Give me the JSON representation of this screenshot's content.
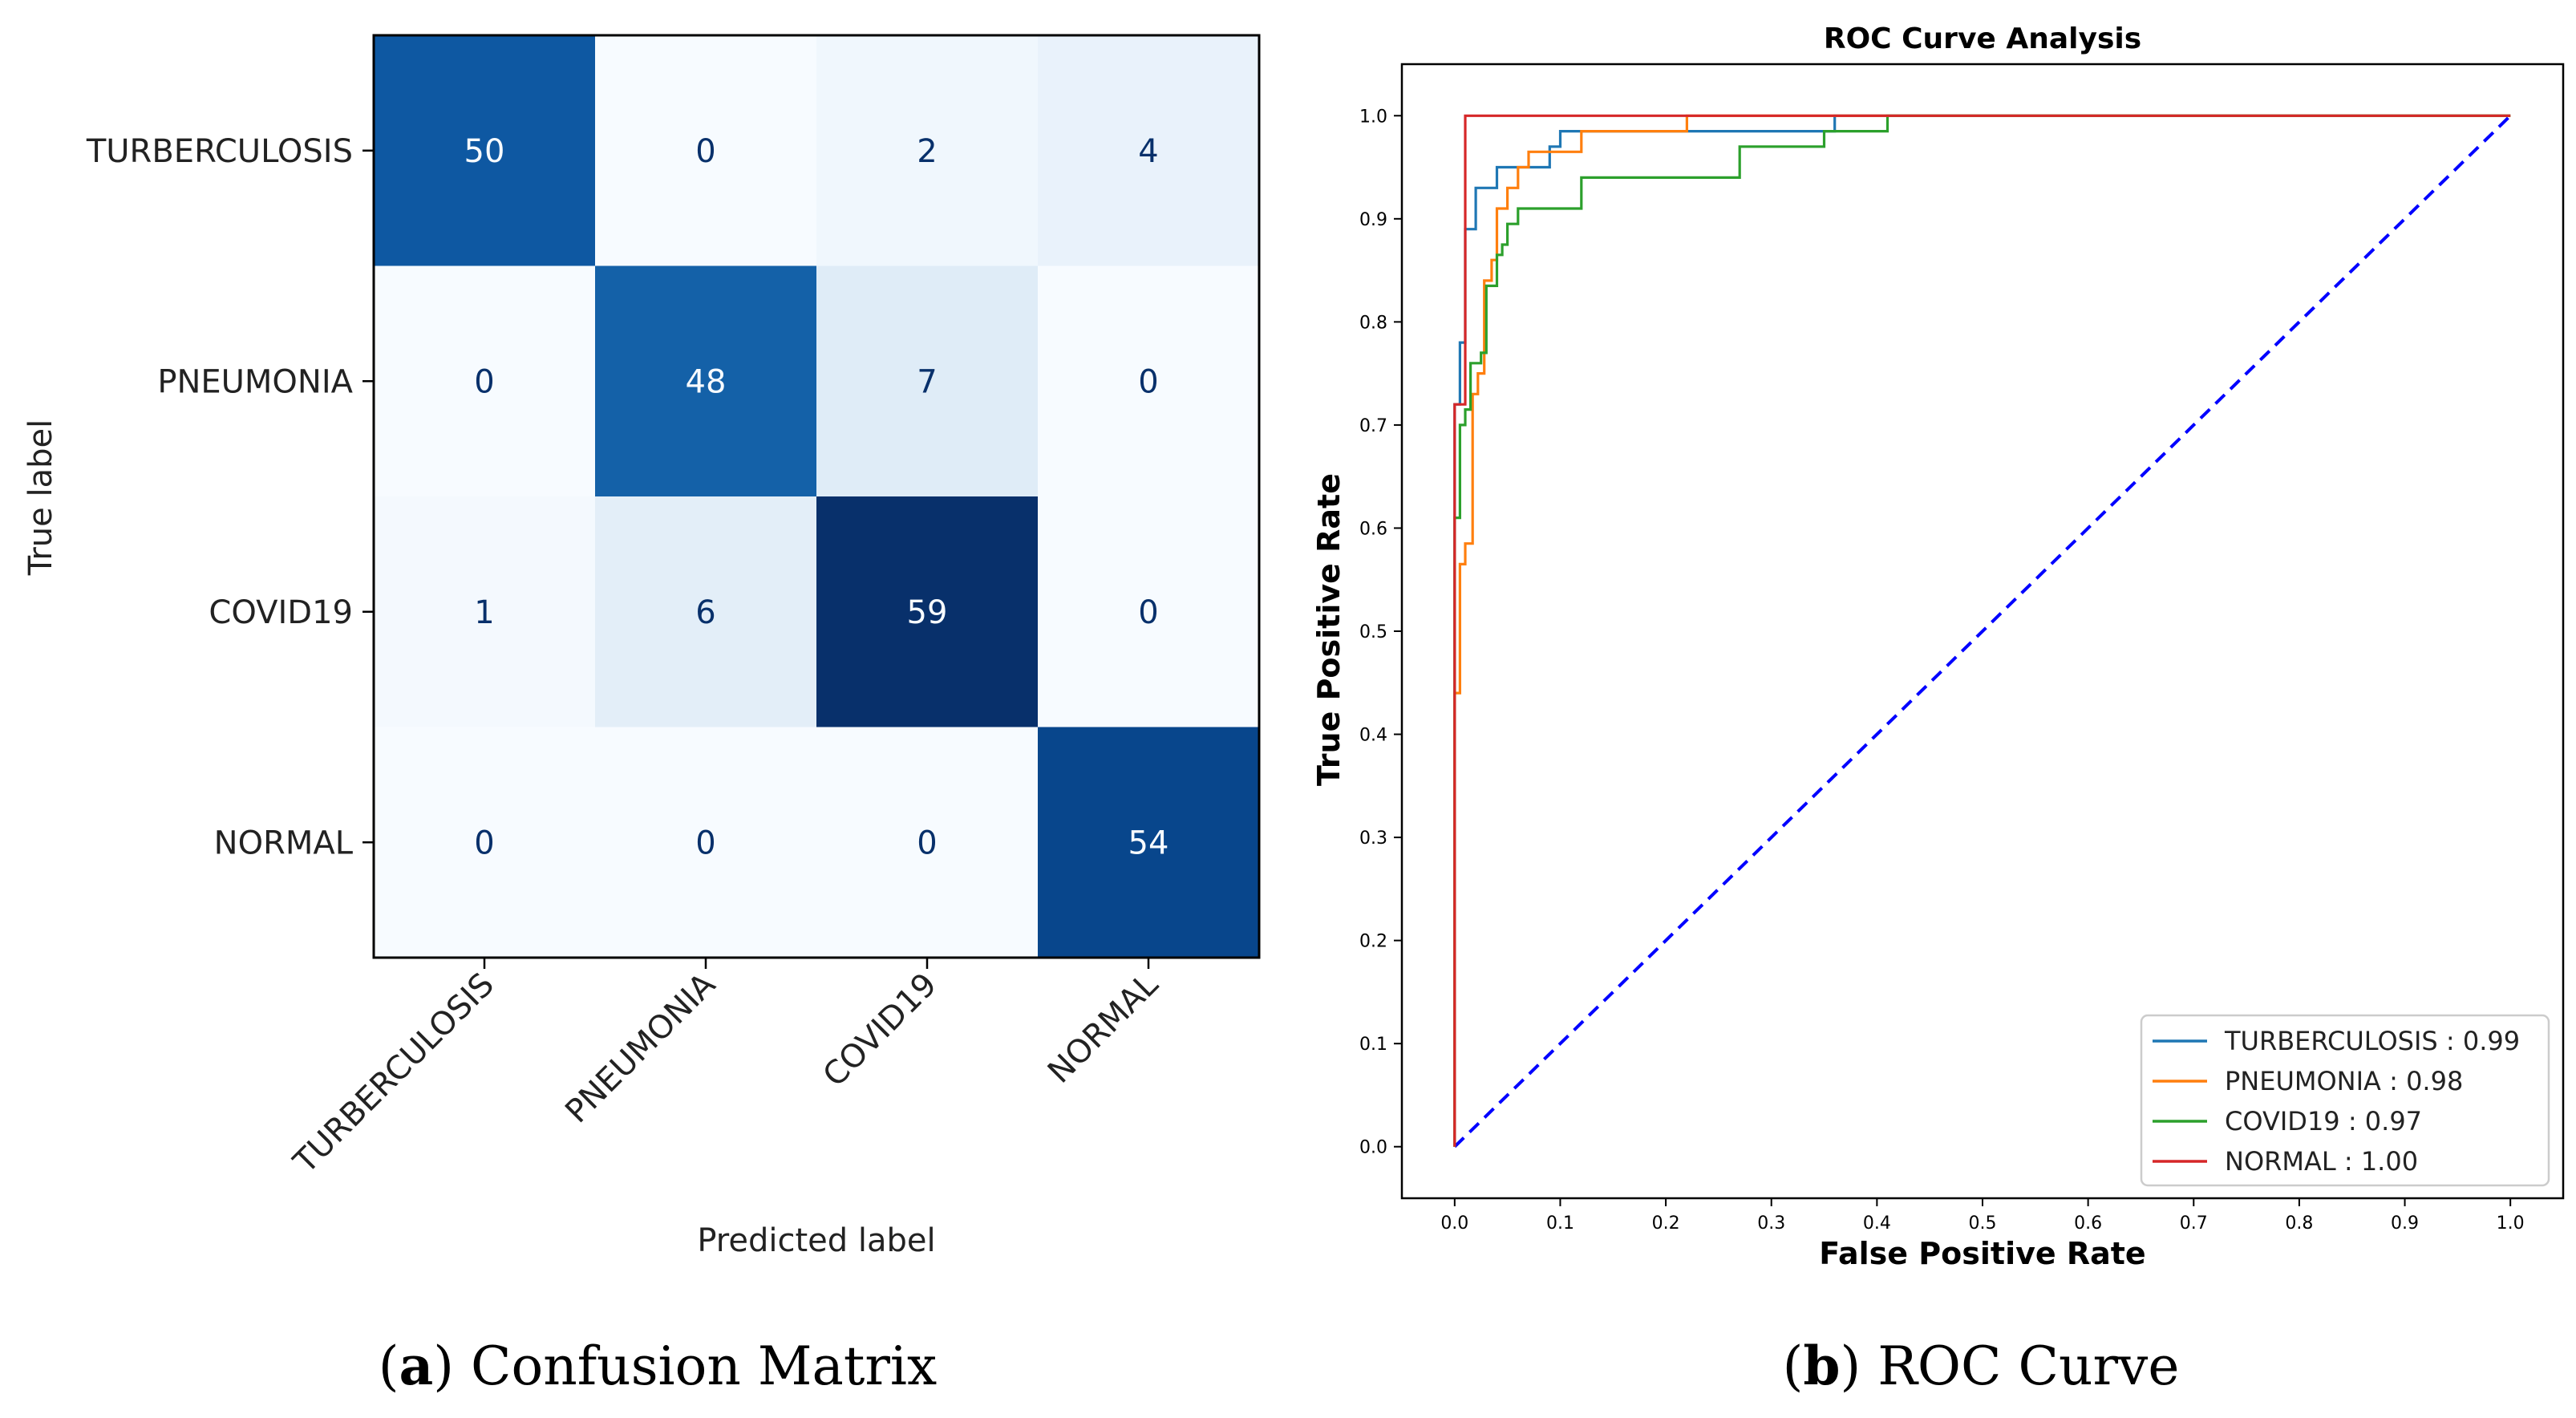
{
  "chart_data": [
    {
      "type": "heatmap",
      "caption_letter": "a",
      "caption_text": "Confusion Matrix",
      "xlabel": "Predicted label",
      "ylabel": "True label",
      "x_tick_labels": [
        "TURBERCULOSIS",
        "PNEUMONIA",
        "COVID19",
        "NORMAL"
      ],
      "y_tick_labels": [
        "TURBERCULOSIS",
        "PNEUMONIA",
        "COVID19",
        "NORMAL"
      ],
      "matrix": [
        [
          50,
          0,
          2,
          4
        ],
        [
          0,
          48,
          7,
          0
        ],
        [
          1,
          6,
          59,
          0
        ],
        [
          0,
          0,
          0,
          54
        ]
      ],
      "colormap": "Blues",
      "value_range": [
        0,
        59
      ]
    },
    {
      "type": "line",
      "caption_letter": "b",
      "caption_text": "ROC Curve",
      "title": "ROC Curve Analysis",
      "xlabel": "False Positive Rate",
      "ylabel": "True Positive Rate",
      "xlim": [
        -0.05,
        1.05
      ],
      "ylim": [
        -0.05,
        1.05
      ],
      "x_ticks": [
        "0.0",
        "0.1",
        "0.2",
        "0.3",
        "0.4",
        "0.5",
        "0.6",
        "0.7",
        "0.8",
        "0.9",
        "1.0"
      ],
      "y_ticks": [
        "0.0",
        "0.1",
        "0.2",
        "0.3",
        "0.4",
        "0.5",
        "0.6",
        "0.7",
        "0.8",
        "0.9",
        "1.0"
      ],
      "legend_position": "lower-right",
      "series": [
        {
          "name": "TURBERCULOSIS",
          "auc": "0.99",
          "legend_label": "TURBERCULOSIS : 0.99",
          "color": "#1f77b4",
          "x": [
            0,
            0,
            0.005,
            0.005,
            0.01,
            0.01,
            0.015,
            0.015,
            0.02,
            0.02,
            0.04,
            0.04,
            0.06,
            0.06,
            0.09,
            0.09,
            0.1,
            0.1,
            0.36,
            0.36,
            1.0
          ],
          "y": [
            0,
            0.72,
            0.72,
            0.78,
            0.78,
            0.89,
            0.89,
            0.89,
            0.89,
            0.93,
            0.93,
            0.95,
            0.95,
            0.95,
            0.95,
            0.97,
            0.97,
            0.985,
            0.985,
            1.0,
            1.0
          ]
        },
        {
          "name": "PNEUMONIA",
          "auc": "0.98",
          "legend_label": "PNEUMONIA : 0.98",
          "color": "#ff7f0e",
          "x": [
            0,
            0,
            0.005,
            0.005,
            0.01,
            0.01,
            0.017,
            0.017,
            0.022,
            0.022,
            0.028,
            0.028,
            0.035,
            0.035,
            0.04,
            0.04,
            0.05,
            0.05,
            0.06,
            0.06,
            0.07,
            0.07,
            0.08,
            0.08,
            0.12,
            0.12,
            0.22,
            0.22,
            1.0
          ],
          "y": [
            0,
            0.44,
            0.44,
            0.565,
            0.565,
            0.585,
            0.585,
            0.73,
            0.73,
            0.75,
            0.75,
            0.84,
            0.84,
            0.86,
            0.86,
            0.91,
            0.91,
            0.93,
            0.93,
            0.95,
            0.95,
            0.965,
            0.965,
            0.965,
            0.965,
            0.985,
            0.985,
            1.0,
            1.0
          ]
        },
        {
          "name": "COVID19",
          "auc": "0.97",
          "legend_label": "COVID19 : 0.97",
          "color": "#2ca02c",
          "x": [
            0,
            0,
            0.005,
            0.005,
            0.01,
            0.01,
            0.015,
            0.015,
            0.025,
            0.025,
            0.03,
            0.03,
            0.04,
            0.04,
            0.045,
            0.045,
            0.05,
            0.05,
            0.06,
            0.06,
            0.07,
            0.07,
            0.12,
            0.12,
            0.15,
            0.15,
            0.27,
            0.27,
            0.28,
            0.28,
            0.35,
            0.35,
            0.41,
            0.41,
            1.0
          ],
          "y": [
            0,
            0.61,
            0.61,
            0.7,
            0.7,
            0.715,
            0.715,
            0.76,
            0.76,
            0.77,
            0.77,
            0.835,
            0.835,
            0.865,
            0.865,
            0.875,
            0.875,
            0.895,
            0.895,
            0.91,
            0.91,
            0.91,
            0.91,
            0.94,
            0.94,
            0.94,
            0.94,
            0.97,
            0.97,
            0.97,
            0.97,
            0.985,
            0.985,
            1.0,
            1.0
          ]
        },
        {
          "name": "NORMAL",
          "auc": "1.00",
          "legend_label": "NORMAL : 1.00",
          "color": "#d62728",
          "x": [
            0,
            0,
            0.01,
            0.01,
            1.0
          ],
          "y": [
            0,
            0.72,
            0.72,
            1.0,
            1.0
          ]
        }
      ],
      "reference_line": {
        "x": [
          0,
          1
        ],
        "y": [
          0,
          1
        ],
        "color": "#0000ff",
        "style": "dashed"
      }
    }
  ]
}
